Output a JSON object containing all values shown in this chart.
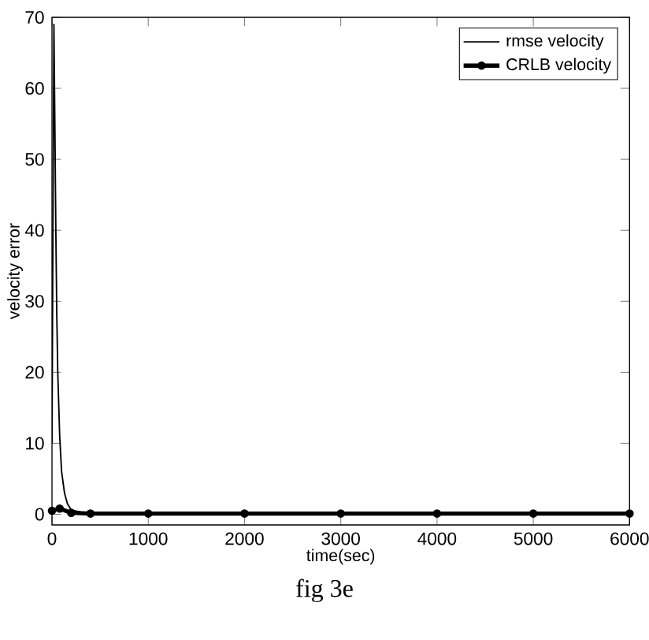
{
  "chart_data": {
    "type": "line",
    "xlabel": "time(sec)",
    "ylabel": "velocity error",
    "xlim": [
      0,
      6000
    ],
    "ylim": [
      -1.5,
      70
    ],
    "xticks": [
      0,
      1000,
      2000,
      3000,
      4000,
      5000,
      6000
    ],
    "yticks": [
      0,
      10,
      20,
      30,
      40,
      50,
      60,
      70
    ],
    "legend": "top right",
    "grid": false,
    "series": [
      {
        "name": "rmse velocity",
        "color": "#000000",
        "line_style": "solid",
        "marker": "none",
        "x": [
          0,
          10,
          20,
          30,
          40,
          50,
          60,
          80,
          100,
          130,
          160,
          200,
          300,
          500,
          1000,
          2000,
          4000,
          6000
        ],
        "values": [
          10,
          40,
          69,
          55,
          40,
          28,
          20,
          11,
          6,
          3,
          1.5,
          0.6,
          0.3,
          0.2,
          0.2,
          0.2,
          0.2,
          0.2
        ]
      },
      {
        "name": "CRLB velocity",
        "color": "#000000",
        "line_style": "solid",
        "marker": "circle",
        "x": [
          0,
          80,
          200,
          400,
          1000,
          2000,
          3000,
          4000,
          5000,
          6000
        ],
        "values": [
          0.5,
          0.8,
          0.2,
          0.1,
          0.1,
          0.1,
          0.1,
          0.1,
          0.1,
          0.1
        ]
      }
    ],
    "annotations": [
      "fig 3e"
    ]
  }
}
